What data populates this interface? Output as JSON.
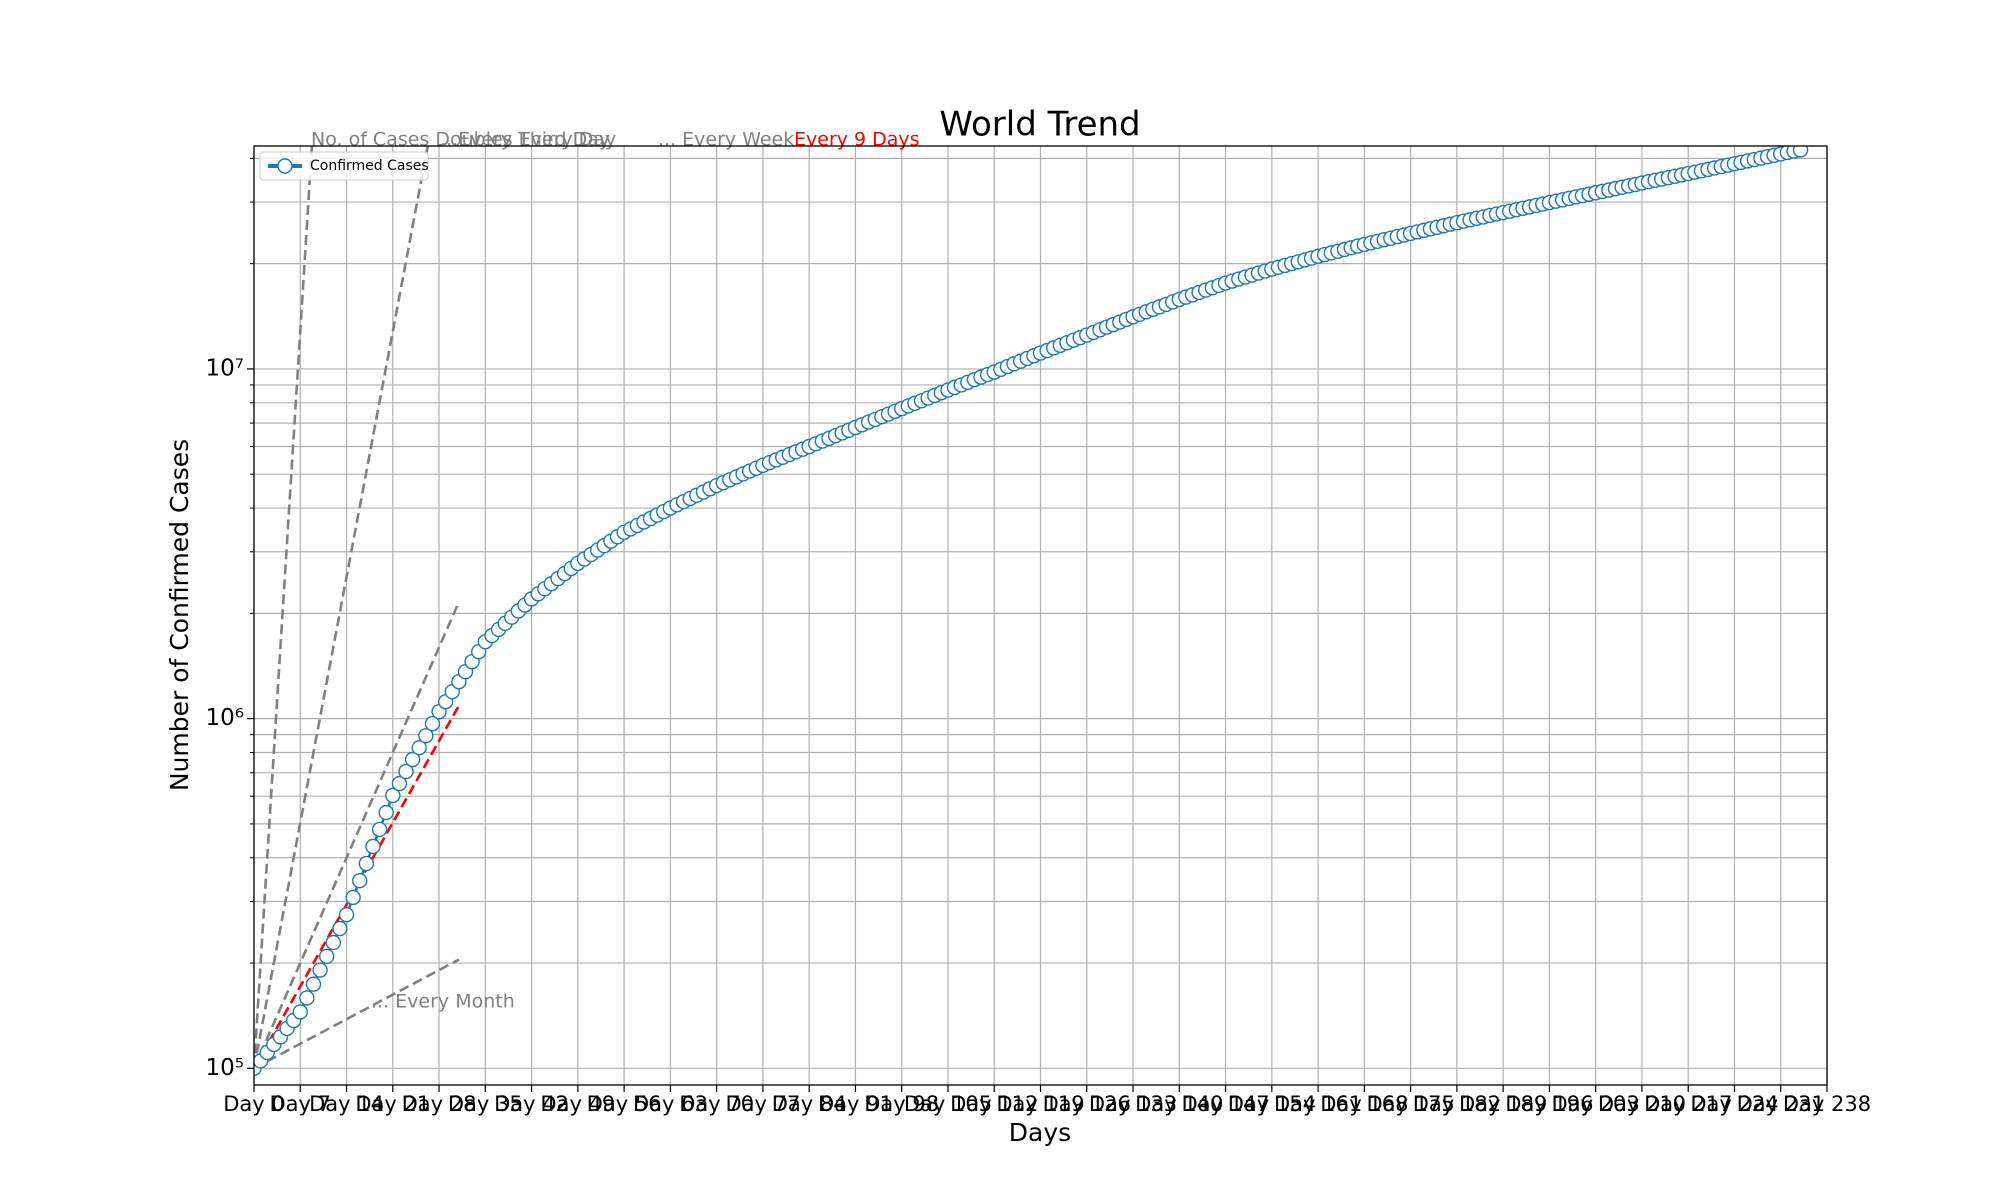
{
  "chart_data": {
    "type": "line",
    "title": "World Trend",
    "xlabel": "Days",
    "ylabel": "Number of Confirmed Cases",
    "log_y": true,
    "grid": true,
    "legend": "upper left",
    "xlim": [
      0,
      238
    ],
    "ylim": [
      89600,
      43400000
    ],
    "xticks": [
      {
        "value": 0,
        "label": "Day 0"
      },
      {
        "value": 7,
        "label": "Day 7"
      },
      {
        "value": 14,
        "label": "Day 14"
      },
      {
        "value": 21,
        "label": "Day 21"
      },
      {
        "value": 28,
        "label": "Day 28"
      },
      {
        "value": 35,
        "label": "Day 35"
      },
      {
        "value": 42,
        "label": "Day 42"
      },
      {
        "value": 49,
        "label": "Day 49"
      },
      {
        "value": 56,
        "label": "Day 56"
      },
      {
        "value": 63,
        "label": "Day 63"
      },
      {
        "value": 70,
        "label": "Day 70"
      },
      {
        "value": 77,
        "label": "Day 77"
      },
      {
        "value": 84,
        "label": "Day 84"
      },
      {
        "value": 91,
        "label": "Day 91"
      },
      {
        "value": 98,
        "label": "Day 98"
      },
      {
        "value": 105,
        "label": "Day 105"
      },
      {
        "value": 112,
        "label": "Day 112"
      },
      {
        "value": 119,
        "label": "Day 119"
      },
      {
        "value": 126,
        "label": "Day 126"
      },
      {
        "value": 133,
        "label": "Day 133"
      },
      {
        "value": 140,
        "label": "Day 140"
      },
      {
        "value": 147,
        "label": "Day 147"
      },
      {
        "value": 154,
        "label": "Day 154"
      },
      {
        "value": 161,
        "label": "Day 161"
      },
      {
        "value": 168,
        "label": "Day 168"
      },
      {
        "value": 175,
        "label": "Day 175"
      },
      {
        "value": 182,
        "label": "Day 182"
      },
      {
        "value": 189,
        "label": "Day 189"
      },
      {
        "value": 196,
        "label": "Day 196"
      },
      {
        "value": 203,
        "label": "Day 203"
      },
      {
        "value": 210,
        "label": "Day 210"
      },
      {
        "value": 217,
        "label": "Day 217"
      },
      {
        "value": 224,
        "label": "Day 224"
      },
      {
        "value": 231,
        "label": "Day 231"
      },
      {
        "value": 238,
        "label": "Day 238"
      }
    ],
    "yticks": [
      {
        "value": 100000,
        "label": "10⁵"
      },
      {
        "value": 1000000,
        "label": "10⁶"
      },
      {
        "value": 10000000,
        "label": "10⁷"
      }
    ],
    "yminorticks": [
      200000,
      300000,
      400000,
      500000,
      600000,
      700000,
      800000,
      900000,
      2000000,
      3000000,
      4000000,
      5000000,
      6000000,
      7000000,
      8000000,
      9000000,
      20000000,
      30000000,
      40000000
    ],
    "x": [
      0,
      1,
      2,
      3,
      4,
      5,
      6,
      7,
      8,
      9,
      10,
      11,
      12,
      13,
      14,
      15,
      16,
      17,
      18,
      19,
      20,
      21,
      22,
      23,
      24,
      25,
      26,
      27,
      28,
      29,
      30,
      31,
      32,
      33,
      34,
      35,
      36,
      37,
      38,
      39,
      40,
      41,
      42,
      43,
      44,
      45,
      46,
      47,
      48,
      49,
      50,
      51,
      52,
      53,
      54,
      55,
      56,
      57,
      58,
      59,
      60,
      61,
      62,
      63,
      64,
      65,
      66,
      67,
      68,
      69,
      70,
      71,
      72,
      73,
      74,
      75,
      76,
      77,
      78,
      79,
      80,
      81,
      82,
      83,
      84,
      85,
      86,
      87,
      88,
      89,
      90,
      91,
      92,
      93,
      94,
      95,
      96,
      97,
      98,
      99,
      100,
      101,
      102,
      103,
      104,
      105,
      106,
      107,
      108,
      109,
      110,
      111,
      112,
      113,
      114,
      115,
      116,
      117,
      118,
      119,
      120,
      121,
      122,
      123,
      124,
      125,
      126,
      127,
      128,
      129,
      130,
      131,
      132,
      133,
      134,
      135,
      136,
      137,
      138,
      139,
      140,
      141,
      142,
      143,
      144,
      145,
      146,
      147,
      148,
      149,
      150,
      151,
      152,
      153,
      154,
      155,
      156,
      157,
      158,
      159,
      160,
      161,
      162,
      163,
      164,
      165,
      166,
      167,
      168,
      169,
      170,
      171,
      172,
      173,
      174,
      175,
      176,
      177,
      178,
      179,
      180,
      181,
      182,
      183,
      184,
      185,
      186,
      187,
      188,
      189,
      190,
      191,
      192,
      193,
      194,
      195,
      196,
      197,
      198,
      199,
      200,
      201,
      202,
      203,
      204,
      205,
      206,
      207,
      208,
      209,
      210,
      211,
      212,
      213,
      214,
      215,
      216,
      217,
      218,
      219,
      220,
      221,
      222,
      223,
      224,
      225,
      226,
      227,
      228,
      229,
      230,
      231,
      232,
      233,
      234
    ],
    "series": [
      {
        "name": "Confirmed Cases",
        "color": "#1f77b4",
        "values": [
          100000,
          105000,
          111000,
          117000,
          123000,
          130000,
          137000,
          145000,
          159000,
          174000,
          191000,
          209000,
          229000,
          251000,
          275000,
          308000,
          344000,
          385000,
          431000,
          482000,
          539000,
          603000,
          652000,
          706000,
          764000,
          826000,
          894000,
          967000,
          1047000,
          1118000,
          1194000,
          1275000,
          1362000,
          1455000,
          1554000,
          1660000,
          1728000,
          1799000,
          1873000,
          1950000,
          2030000,
          2113000,
          2200000,
          2275000,
          2352000,
          2432000,
          2515000,
          2600000,
          2689000,
          2780000,
          2862000,
          2947000,
          3034000,
          3124000,
          3217000,
          3312000,
          3410000,
          3488000,
          3569000,
          3651000,
          3735000,
          3821000,
          3909000,
          4000000,
          4086000,
          4173000,
          4262000,
          4353000,
          4446000,
          4541000,
          4640000,
          4729000,
          4820000,
          4913000,
          5007000,
          5103000,
          5201000,
          5300000,
          5395000,
          5492000,
          5590000,
          5690000,
          5792000,
          5895000,
          6000000,
          6108000,
          6218000,
          6330000,
          6444000,
          6560000,
          6678000,
          6800000,
          6922000,
          7046000,
          7172000,
          7300000,
          7431000,
          7564000,
          7700000,
          7836000,
          7974000,
          8114000,
          8257000,
          8402000,
          8550000,
          8700000,
          8850000,
          9002000,
          9157000,
          9314000,
          9474000,
          9637000,
          9800000,
          9976000,
          10156000,
          10339000,
          10525000,
          10714000,
          10907000,
          11100000,
          11290000,
          11483000,
          11679000,
          11879000,
          12082000,
          12289000,
          12500000,
          12716000,
          12936000,
          13160000,
          13387000,
          13619000,
          13855000,
          14100000,
          14331000,
          14566000,
          14805000,
          15048000,
          15295000,
          15546000,
          15800000,
          16045000,
          16294000,
          16547000,
          16803000,
          17064000,
          17328000,
          17600000,
          17834000,
          18071000,
          18311000,
          18555000,
          18802000,
          19052000,
          19300000,
          19534000,
          19770000,
          20009000,
          20251000,
          20496000,
          20744000,
          21000000,
          21235000,
          21473000,
          21713000,
          21956000,
          22202000,
          22451000,
          22700000,
          22936000,
          23175000,
          23416000,
          23659000,
          23905000,
          24154000,
          24400000,
          24649000,
          24900000,
          25154000,
          25411000,
          25670000,
          25932000,
          26200000,
          26449000,
          26700000,
          26954000,
          27210000,
          27469000,
          27730000,
          28000000,
          28263000,
          28529000,
          28797000,
          29068000,
          29341000,
          29617000,
          29900000,
          30178000,
          30459000,
          30742000,
          31028000,
          31317000,
          31608000,
          31900000,
          32190000,
          32483000,
          32779000,
          33077000,
          33378000,
          33682000,
          34000000,
          34306000,
          34615000,
          34926000,
          35240000,
          35557000,
          35877000,
          36200000,
          36533000,
          36869000,
          37208000,
          37550000,
          37896000,
          38244000,
          38600000,
          38963000,
          39329000,
          39699000,
          40072000,
          40449000,
          40829000,
          41200000,
          41587000,
          41978000,
          42300000
        ]
      }
    ],
    "reference_lines": [
      {
        "label": "No. of Cases Doubles Every Day",
        "doubling_days": 1,
        "end_day": 31,
        "color": "#808080"
      },
      {
        "label": "...Every Third Day",
        "doubling_days": 3,
        "end_day": 31,
        "color": "#808080"
      },
      {
        "label": "... Every Week",
        "doubling_days": 7,
        "end_day": 31,
        "color": "#808080"
      },
      {
        "label": "Every 9 Days",
        "doubling_days": 9,
        "end_day": 31,
        "color": "#ff0000"
      },
      {
        "label": "... Every Month",
        "doubling_days": 30,
        "end_day": 31,
        "color": "#808080"
      }
    ]
  }
}
